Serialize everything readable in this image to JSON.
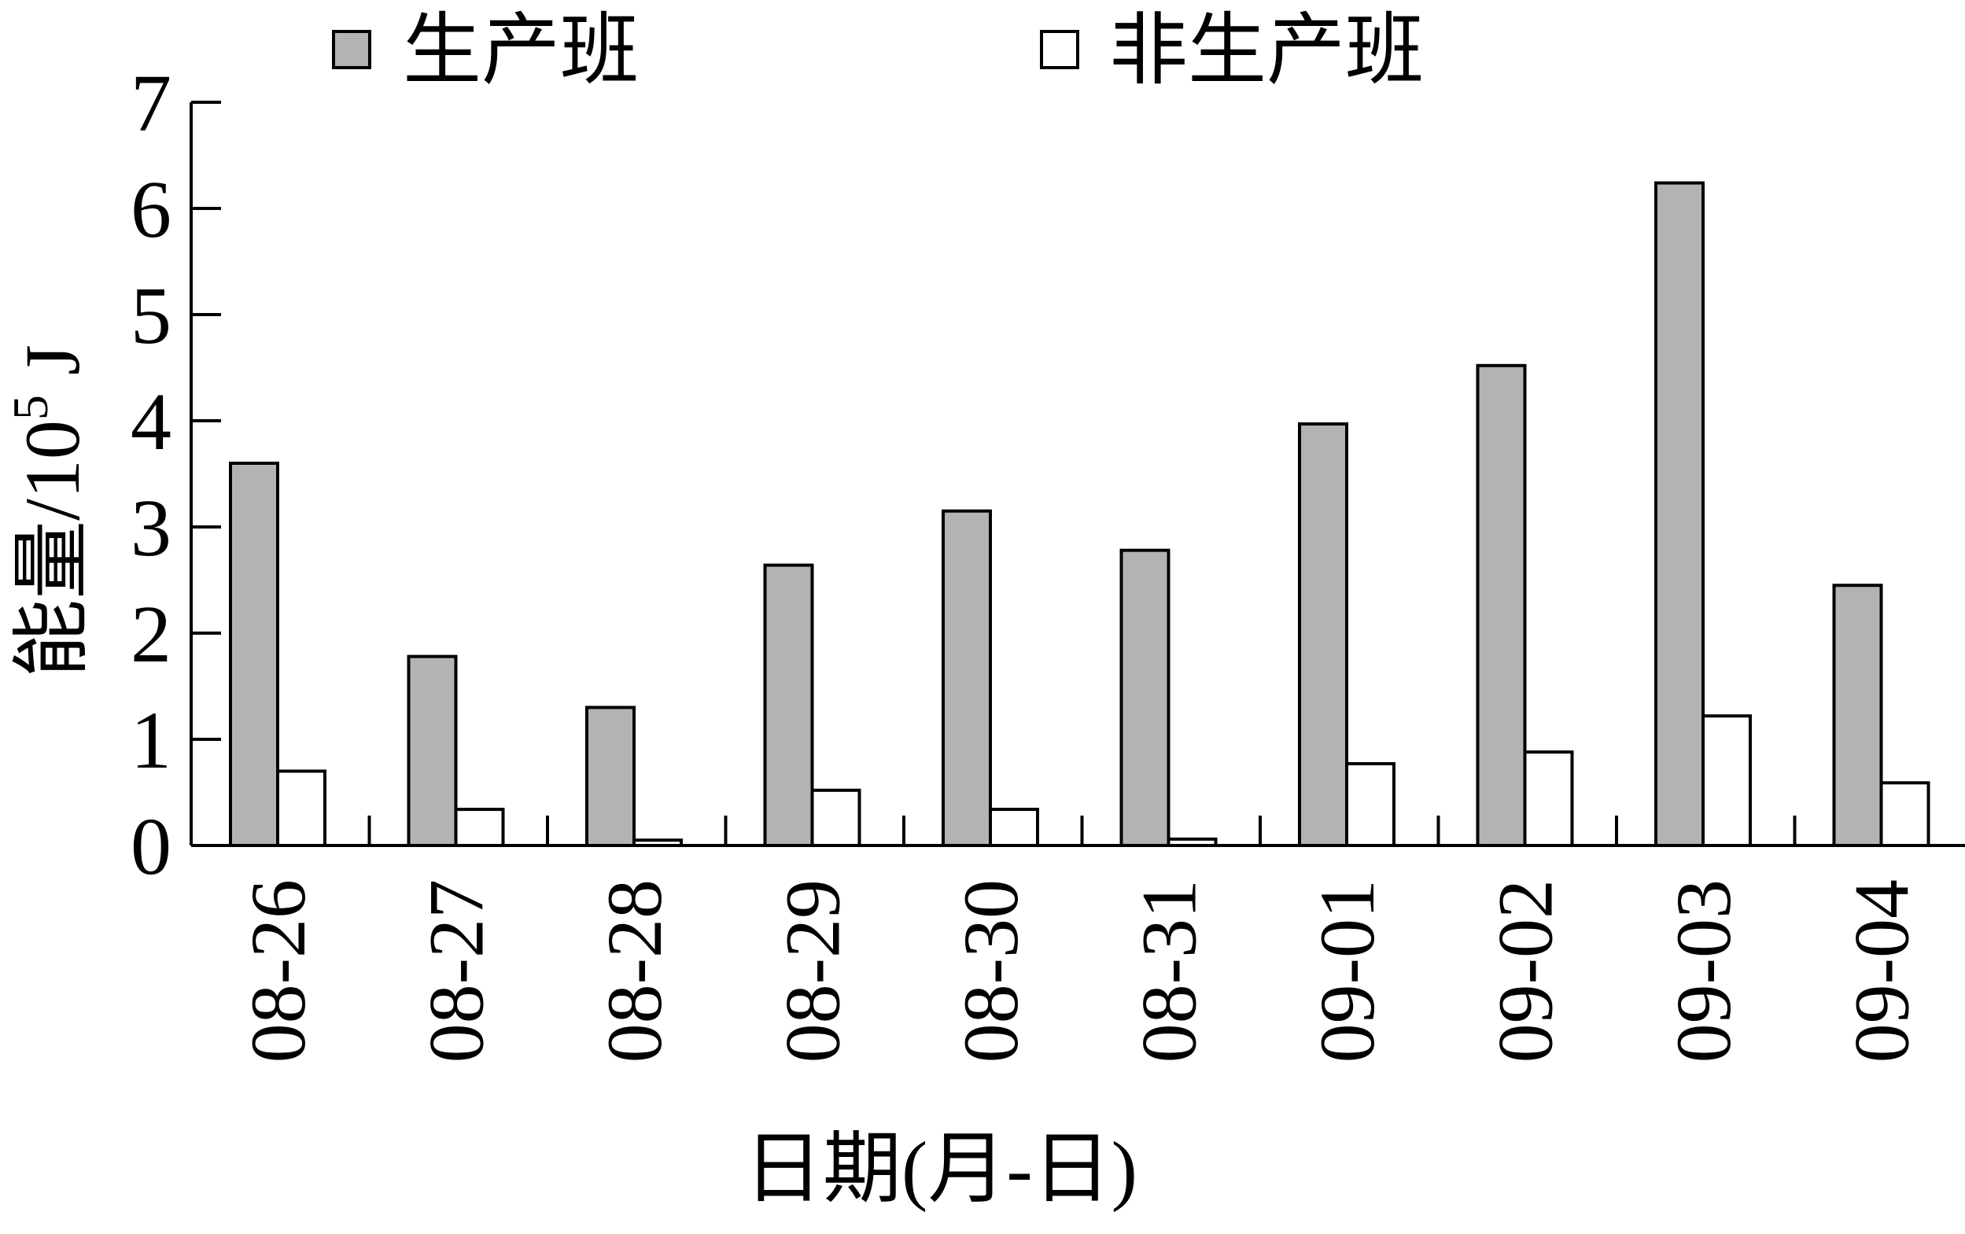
{
  "chart_data": {
    "type": "bar",
    "title": "",
    "xlabel": "日期(月-日)",
    "ylabel": "能量/10",
    "ylabel_superscript": "5",
    "ylabel_unit": " J",
    "ylim": [
      0,
      7
    ],
    "yticks": [
      "0",
      "1",
      "2",
      "3",
      "4",
      "5",
      "6",
      "7"
    ],
    "grid": false,
    "legend_position": "top",
    "categories": [
      "08-26",
      "08-27",
      "08-28",
      "08-29",
      "08-30",
      "08-31",
      "09-01",
      "09-02",
      "09-03",
      "09-04"
    ],
    "series": [
      {
        "name": "生产班",
        "color": "#b3b3b3",
        "values": [
          3.6,
          1.78,
          1.3,
          2.64,
          3.15,
          2.78,
          3.97,
          4.52,
          6.24,
          2.45
        ]
      },
      {
        "name": "非生产班",
        "color": "#ffffff",
        "values": [
          0.7,
          0.34,
          0.05,
          0.52,
          0.34,
          0.06,
          0.77,
          0.88,
          1.22,
          0.59
        ]
      }
    ]
  }
}
